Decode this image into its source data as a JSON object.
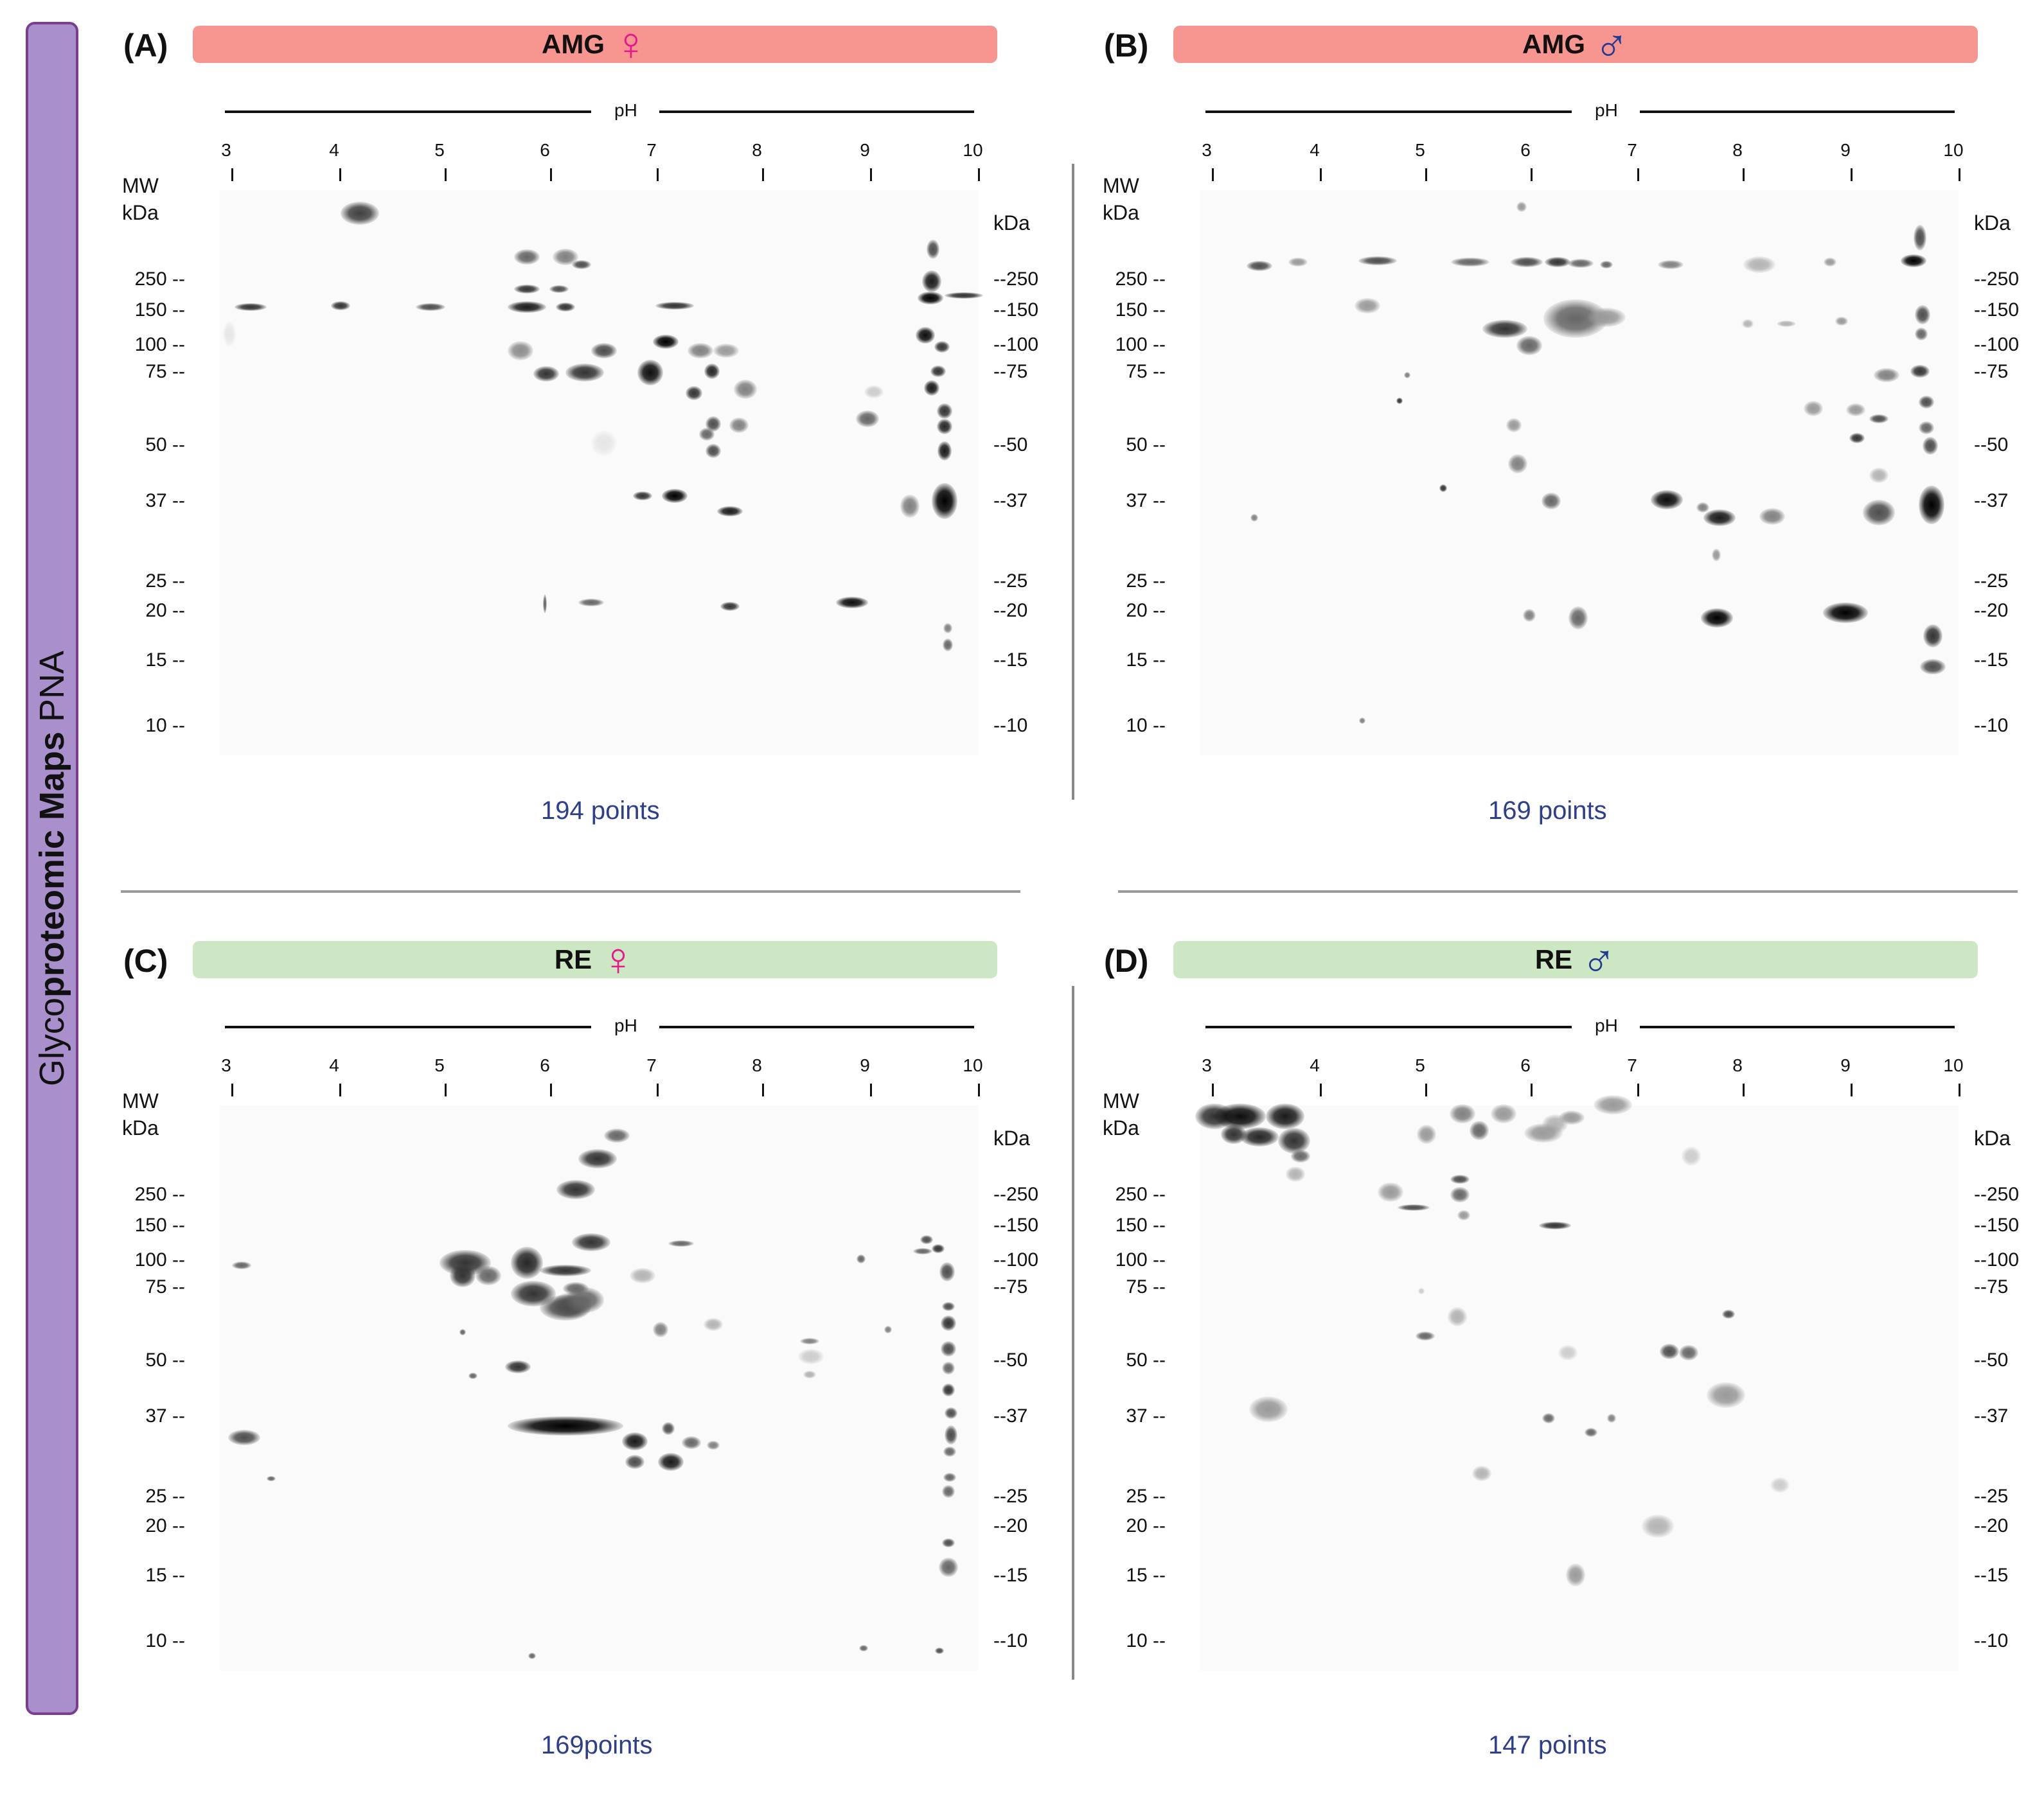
{
  "side_title": {
    "prefix": "Glyco",
    "bold": "proteomic Maps",
    "suffix": "PNA"
  },
  "ph_label": "pH",
  "ph_ticks": [
    "3",
    "4",
    "5",
    "6",
    "7",
    "8",
    "9",
    "10"
  ],
  "mw_header": [
    "MW",
    "kDa"
  ],
  "right_unit": "kDa",
  "mw_left": [
    "250 --",
    "150 --",
    "100 --",
    "75 --",
    "50 --",
    "37 --",
    "25 --",
    "20 --",
    "15 --",
    "10 --"
  ],
  "mw_right": [
    "--250",
    "--150",
    "--100",
    "--75",
    "--50",
    "--37",
    "--25",
    "--20",
    "--15",
    "--10"
  ],
  "colors": {
    "amg_bar": "#f79591",
    "re_bar": "#cde6c3",
    "female": "#e8168f",
    "male": "#1f3a93",
    "points_text": "#2d3e8c",
    "side_banner": "#a98fcb"
  },
  "panels": [
    {
      "letter": "(A)",
      "sample": "AMG",
      "sex_symbol": "♀",
      "sex": "female",
      "points": "194 points"
    },
    {
      "letter": "(B)",
      "sample": "AMG",
      "sex_symbol": "♂",
      "sex": "male",
      "points": "169  points"
    },
    {
      "letter": "(C)",
      "sample": "RE",
      "sex_symbol": "♀",
      "sex": "female",
      "points": "169points"
    },
    {
      "letter": "(D)",
      "sample": "RE",
      "sex_symbol": "♂",
      "sex": "male",
      "points": "147  points"
    }
  ]
}
